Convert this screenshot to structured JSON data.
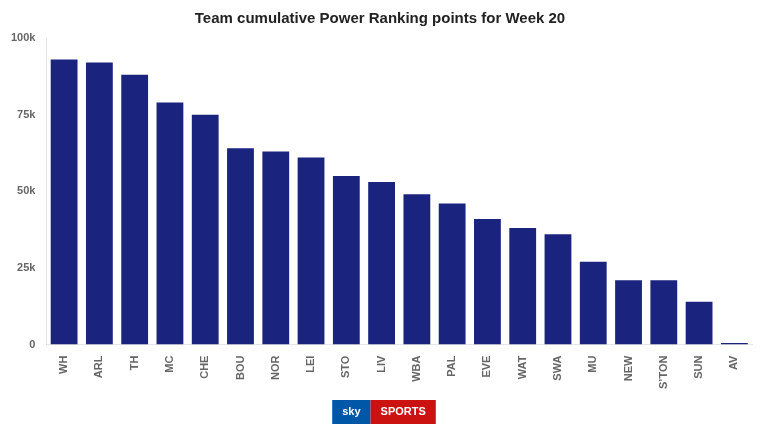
{
  "chart_data": {
    "type": "bar",
    "title": "Team cumulative Power Ranking points for Week 20",
    "categories": [
      "WH",
      "ARL",
      "TH",
      "MC",
      "CHE",
      "BOU",
      "NOR",
      "LEI",
      "STO",
      "LIV",
      "WBA",
      "PAL",
      "EVE",
      "WAT",
      "SWA",
      "MU",
      "NEW",
      "S’TON",
      "SUN",
      "AV"
    ],
    "values": [
      93000,
      92000,
      88000,
      79000,
      75000,
      64000,
      63000,
      61000,
      55000,
      53000,
      49000,
      46000,
      41000,
      38000,
      36000,
      27000,
      21000,
      21000,
      14000,
      500
    ],
    "color": "#1a237e",
    "ylim": [
      0,
      100000
    ],
    "yticks": [
      0,
      {
        "value": 25000,
        "label": "25k"
      },
      {
        "value": 50000,
        "label": "50k"
      },
      {
        "value": 75000,
        "label": "75k"
      },
      {
        "value": 100000,
        "label": "100k"
      }
    ],
    "grid": false,
    "annotations": [
      {
        "text": "sky",
        "color": "#0057a8"
      },
      {
        "text": "SPORTS",
        "color": "#cc1111"
      }
    ]
  }
}
